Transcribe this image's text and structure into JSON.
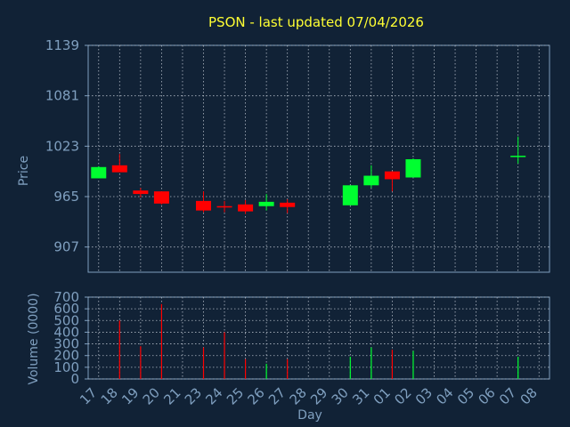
{
  "title": "PSON - last updated 07/04/2026",
  "colors": {
    "background": "#112236",
    "text_title": "#ffff33",
    "axis_text": "#7f9fbf",
    "frame": "#7f9fbf",
    "grid": "#b0b8c4",
    "up": "#00ff30",
    "down": "#ff0000"
  },
  "chart_data": [
    {
      "type": "candlestick",
      "title": "PSON - last updated 07/04/2026",
      "ylabel": "Price",
      "ylim": [
        878,
        1139
      ],
      "yticks": [
        907,
        965,
        1023,
        1081,
        1139
      ],
      "grid": true,
      "days": [
        "17",
        "18",
        "19",
        "20",
        "21",
        "23",
        "24",
        "25",
        "26",
        "27",
        "28",
        "29",
        "30",
        "31",
        "01",
        "02",
        "03",
        "04",
        "05",
        "06",
        "07",
        "08"
      ],
      "candles": [
        {
          "day": "17",
          "open": 986,
          "high": 1000,
          "low": 986,
          "close": 999
        },
        {
          "day": "18",
          "open": 1001,
          "high": 1014,
          "low": 994,
          "close": 993
        },
        {
          "day": "19",
          "open": 972,
          "high": 975,
          "low": 964,
          "close": 968
        },
        {
          "day": "20",
          "open": 971,
          "high": 971,
          "low": 956,
          "close": 957
        },
        {
          "day": "23",
          "open": 960,
          "high": 971,
          "low": 947,
          "close": 949
        },
        {
          "day": "24",
          "open": 954,
          "high": 960,
          "low": 947,
          "close": 953
        },
        {
          "day": "25",
          "open": 956,
          "high": 961,
          "low": 945,
          "close": 948
        },
        {
          "day": "26",
          "open": 954,
          "high": 968,
          "low": 949,
          "close": 959
        },
        {
          "day": "27",
          "open": 958,
          "high": 962,
          "low": 946,
          "close": 953
        },
        {
          "day": "30",
          "open": 955,
          "high": 978,
          "low": 955,
          "close": 978
        },
        {
          "day": "31",
          "open": 978,
          "high": 1001,
          "low": 975,
          "close": 989
        },
        {
          "day": "01",
          "open": 994,
          "high": 994,
          "low": 971,
          "close": 985
        },
        {
          "day": "02",
          "open": 987,
          "high": 1009,
          "low": 987,
          "close": 1008
        },
        {
          "day": "07",
          "open": 1011,
          "high": 1034,
          "low": 1003,
          "close": 1012
        }
      ]
    },
    {
      "type": "bar",
      "ylabel": "Volume (0000)",
      "xlabel": "Day",
      "ylim": [
        0,
        700
      ],
      "yticks": [
        0,
        100,
        200,
        300,
        400,
        500,
        600,
        700
      ],
      "grid": true,
      "categories": [
        "17",
        "18",
        "19",
        "20",
        "21",
        "23",
        "24",
        "25",
        "26",
        "27",
        "28",
        "29",
        "30",
        "31",
        "01",
        "02",
        "03",
        "04",
        "05",
        "06",
        "07",
        "08"
      ],
      "series": [
        {
          "values": [
            0,
            500,
            280,
            640,
            0,
            270,
            400,
            170,
            130,
            170,
            0,
            0,
            190,
            270,
            250,
            240,
            0,
            0,
            0,
            0,
            190,
            0
          ],
          "direction": [
            "none",
            "down",
            "down",
            "down",
            "none",
            "down",
            "down",
            "down",
            "up",
            "down",
            "none",
            "none",
            "up",
            "up",
            "down",
            "up",
            "none",
            "none",
            "none",
            "none",
            "up",
            "none"
          ]
        }
      ]
    }
  ]
}
